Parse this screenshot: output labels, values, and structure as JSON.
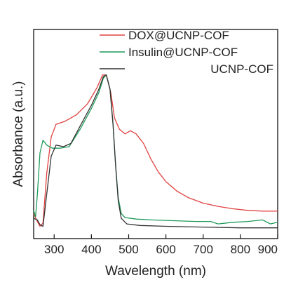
{
  "chart_data": {
    "type": "line",
    "xlabel": "Wavelength (nm)",
    "ylabel": "Absorbance (a.u.)",
    "xlim": [
      245,
      900
    ],
    "ylim": [
      0,
      1
    ],
    "x_ticks": [
      "300",
      "400",
      "500",
      "600",
      "700",
      "800",
      "900"
    ],
    "y_ticks_shown": false,
    "grid": false,
    "legend_position": "top-right",
    "series": [
      {
        "name": "DOX@UCNP-COF",
        "color": "#e0413f",
        "points": [
          [
            245,
            0.1
          ],
          [
            255,
            0.05
          ],
          [
            262,
            0.02
          ],
          [
            270,
            0.04
          ],
          [
            280,
            0.35
          ],
          [
            292,
            0.58
          ],
          [
            305,
            0.66
          ],
          [
            330,
            0.68
          ],
          [
            360,
            0.72
          ],
          [
            390,
            0.79
          ],
          [
            415,
            0.89
          ],
          [
            430,
            0.97
          ],
          [
            440,
            0.97
          ],
          [
            452,
            0.86
          ],
          [
            462,
            0.7
          ],
          [
            475,
            0.63
          ],
          [
            490,
            0.6
          ],
          [
            505,
            0.62
          ],
          [
            520,
            0.6
          ],
          [
            540,
            0.54
          ],
          [
            560,
            0.44
          ],
          [
            580,
            0.36
          ],
          [
            600,
            0.3
          ],
          [
            630,
            0.24
          ],
          [
            660,
            0.2
          ],
          [
            700,
            0.165
          ],
          [
            740,
            0.145
          ],
          [
            780,
            0.13
          ],
          [
            820,
            0.12
          ],
          [
            860,
            0.115
          ],
          [
            900,
            0.115
          ]
        ]
      },
      {
        "name": "Insulin@UCNP-COF",
        "color": "#1f9a5a",
        "points": [
          [
            245,
            0.12
          ],
          [
            250,
            0.08
          ],
          [
            255,
            0.22
          ],
          [
            262,
            0.48
          ],
          [
            270,
            0.56
          ],
          [
            280,
            0.53
          ],
          [
            295,
            0.51
          ],
          [
            315,
            0.51
          ],
          [
            340,
            0.52
          ],
          [
            370,
            0.63
          ],
          [
            400,
            0.76
          ],
          [
            420,
            0.86
          ],
          [
            432,
            0.95
          ],
          [
            440,
            0.97
          ],
          [
            450,
            0.88
          ],
          [
            458,
            0.66
          ],
          [
            465,
            0.4
          ],
          [
            472,
            0.2
          ],
          [
            480,
            0.1
          ],
          [
            490,
            0.075
          ],
          [
            520,
            0.065
          ],
          [
            560,
            0.06
          ],
          [
            620,
            0.055
          ],
          [
            680,
            0.05
          ],
          [
            720,
            0.05
          ],
          [
            740,
            0.035
          ],
          [
            780,
            0.045
          ],
          [
            820,
            0.05
          ],
          [
            860,
            0.06
          ],
          [
            880,
            0.035
          ],
          [
            900,
            0.045
          ]
        ]
      },
      {
        "name": "UCNP-COF",
        "color": "#333333",
        "points": [
          [
            245,
            0.07
          ],
          [
            255,
            0.06
          ],
          [
            262,
            0.03
          ],
          [
            270,
            0.02
          ],
          [
            280,
            0.22
          ],
          [
            292,
            0.46
          ],
          [
            305,
            0.53
          ],
          [
            325,
            0.52
          ],
          [
            345,
            0.54
          ],
          [
            370,
            0.65
          ],
          [
            400,
            0.78
          ],
          [
            420,
            0.88
          ],
          [
            432,
            0.96
          ],
          [
            440,
            0.97
          ],
          [
            450,
            0.88
          ],
          [
            458,
            0.66
          ],
          [
            465,
            0.4
          ],
          [
            472,
            0.18
          ],
          [
            480,
            0.07
          ],
          [
            495,
            0.035
          ],
          [
            530,
            0.025
          ],
          [
            600,
            0.02
          ],
          [
            700,
            0.015
          ],
          [
            800,
            0.01
          ],
          [
            900,
            0.01
          ]
        ]
      }
    ]
  }
}
